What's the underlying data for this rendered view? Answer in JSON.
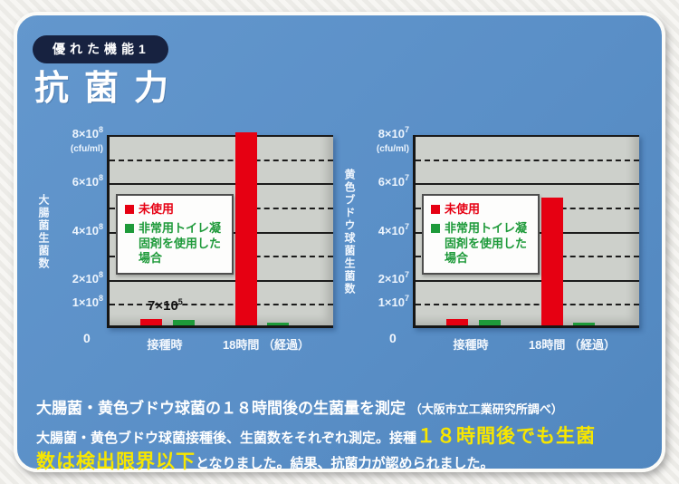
{
  "page": {
    "badge_label": "優れた機能1",
    "title": "抗菌力"
  },
  "colors": {
    "card_blue": "#5a8fc7",
    "badge_navy": "#172240",
    "plot_gray": "#cdd0cb",
    "bar_red": "#e60012",
    "bar_green": "#1e9a3a",
    "highlight_yellow": "#f7e600"
  },
  "legend": {
    "items": [
      {
        "label": "未使用",
        "color": "#e60012"
      },
      {
        "label": "非常用トイレ凝固剤を使用した場合",
        "color": "#1e9a3a"
      }
    ]
  },
  "chart_data": [
    {
      "type": "bar",
      "axis_title": "大腸菌生菌数",
      "unit_label": "(cfu/ml)",
      "exponent": "8",
      "scale_note": "y values are in units of 1×10^8 cfu/ml",
      "y_max": 8,
      "y_ticks": [
        8,
        6,
        4,
        2,
        1
      ],
      "solid_gridlines": [
        8,
        6,
        4,
        2
      ],
      "dashed_gridlines": [
        7,
        5,
        3,
        1
      ],
      "zero_label": "0",
      "categories": [
        "接種時",
        "18時間 （経過）"
      ],
      "series": [
        {
          "name": "未使用",
          "color": "#e60012",
          "values": [
            0.25,
            8.0
          ]
        },
        {
          "name": "非常用トイレ凝固剤を使用した場合",
          "color": "#1e9a3a",
          "values": [
            0.22,
            0.12
          ]
        }
      ],
      "annotation": {
        "mantissa": "7×10",
        "exponent": "5"
      }
    },
    {
      "type": "bar",
      "axis_title": "黄色ブドウ球菌生菌数",
      "unit_label": "(cfu/ml)",
      "exponent": "7",
      "scale_note": "y values are in units of 1×10^7 cfu/ml",
      "y_max": 8,
      "y_ticks": [
        8,
        6,
        4,
        2,
        1
      ],
      "solid_gridlines": [
        8,
        6,
        4,
        2
      ],
      "dashed_gridlines": [
        7,
        5,
        3,
        1
      ],
      "zero_label": "0",
      "categories": [
        "接種時",
        "18時間 （経過）"
      ],
      "series": [
        {
          "name": "未使用",
          "color": "#e60012",
          "values": [
            0.25,
            5.3
          ]
        },
        {
          "name": "非常用トイレ凝固剤を使用した場合",
          "color": "#1e9a3a",
          "values": [
            0.22,
            0.12
          ]
        }
      ],
      "annotation": null
    }
  ],
  "footer": {
    "heading_main": "大腸菌・黄色ブドウ球菌の１８時間後の生菌量を測定",
    "heading_note": "（大阪市立工業研究所調べ）",
    "body_line1_white": "大腸菌・黄色ブドウ球菌接種後、生菌数をそれぞれ測定。接種",
    "body_line1_yellow": "１８時間後でも生菌",
    "body_line2_yellow": "数は検出限界以下",
    "body_line2_white": "となりました。結果、抗菌力が認められました。"
  }
}
